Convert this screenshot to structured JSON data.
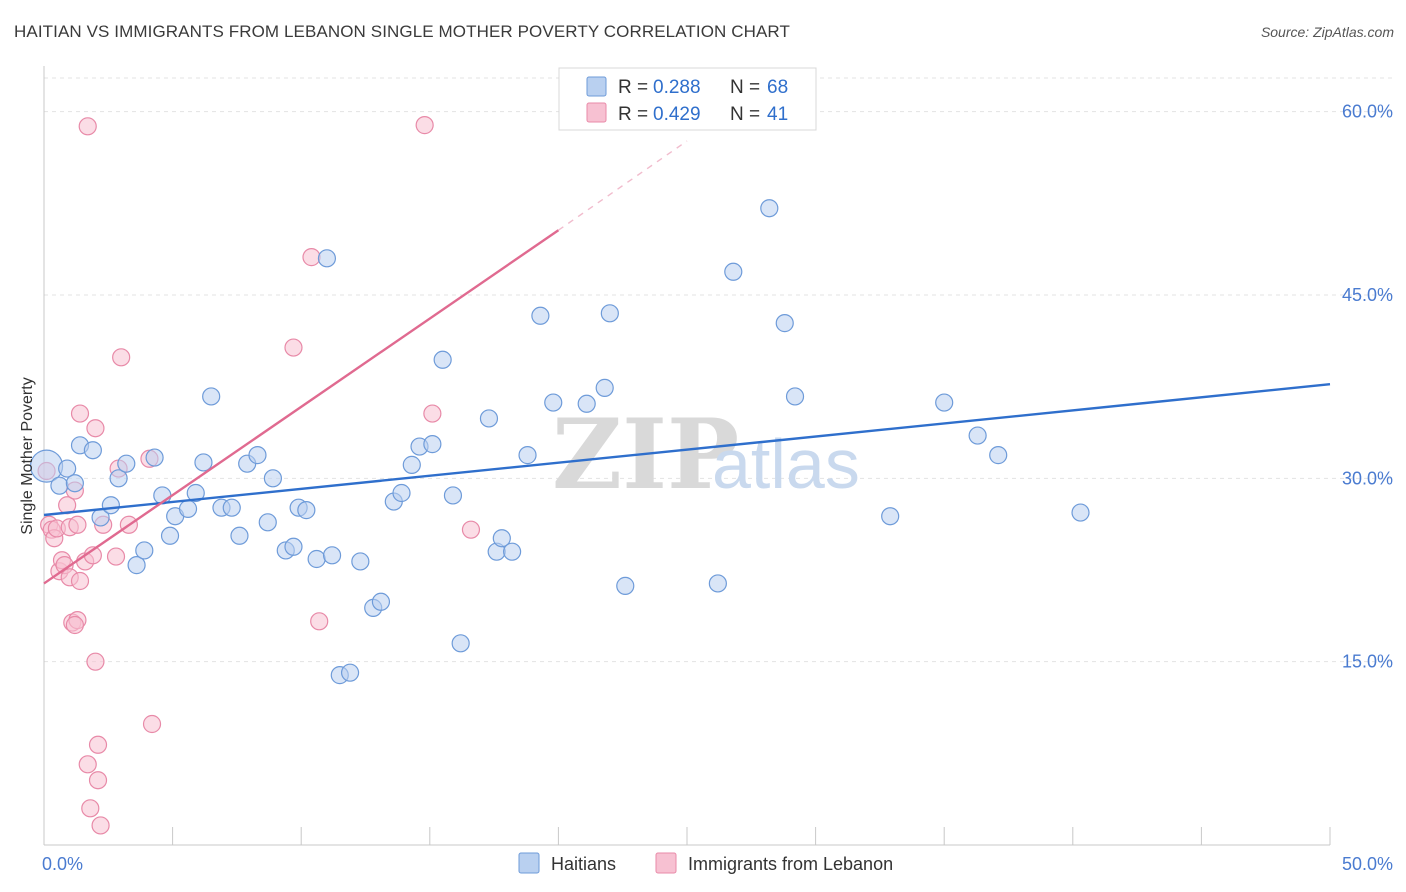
{
  "title": "HAITIAN VS IMMIGRANTS FROM LEBANON SINGLE MOTHER POVERTY CORRELATION CHART",
  "source": "Source: ZipAtlas.com",
  "watermark": {
    "zip": "ZIP",
    "atlas": "atlas"
  },
  "colors": {
    "haitians_fill": "#b9d0f0",
    "haitians_stroke": "#6e9bd9",
    "haitians_line": "#2f6fcc",
    "lebanon_fill": "#f7c1d2",
    "lebanon_stroke": "#e88aa8",
    "lebanon_line": "#e06a90",
    "tick_text": "#4a7bd0",
    "grid": "#e3e3e3"
  },
  "stats_box": {
    "rows": [
      {
        "r_label": "R =",
        "r_value": "0.288",
        "n_label": "N =",
        "n_value": "68"
      },
      {
        "r_label": "R =",
        "r_value": "0.429",
        "n_label": "N =",
        "n_value": "41"
      }
    ]
  },
  "chart_data": {
    "type": "scatter",
    "title": "HAITIAN VS IMMIGRANTS FROM LEBANON SINGLE MOTHER POVERTY CORRELATION CHART",
    "xlabel": "",
    "ylabel": "Single Mother Poverty",
    "xlim": [
      0,
      50
    ],
    "ylim": [
      0,
      63
    ],
    "x_ticks": [
      {
        "value": 0,
        "label": "0.0%"
      },
      {
        "value": 50,
        "label": "50.0%"
      }
    ],
    "y_ticks": [
      {
        "value": 15,
        "label": "15.0%"
      },
      {
        "value": 30,
        "label": "30.0%"
      },
      {
        "value": 45,
        "label": "45.0%"
      },
      {
        "value": 60,
        "label": "60.0%"
      }
    ],
    "grid": true,
    "legend_position": "bottom-center",
    "series": [
      {
        "name": "Haitians",
        "trendline": {
          "x": [
            0,
            50
          ],
          "y": [
            27.0,
            37.7
          ],
          "dashed_to": null
        },
        "points": [
          [
            0.1,
            31.0
          ],
          [
            0.6,
            29.4
          ],
          [
            0.9,
            30.8
          ],
          [
            1.2,
            29.6
          ],
          [
            1.4,
            32.7
          ],
          [
            1.9,
            32.3
          ],
          [
            2.2,
            26.8
          ],
          [
            2.6,
            27.8
          ],
          [
            2.9,
            30.0
          ],
          [
            3.2,
            31.2
          ],
          [
            3.6,
            22.9
          ],
          [
            3.9,
            24.1
          ],
          [
            4.3,
            31.7
          ],
          [
            4.6,
            28.6
          ],
          [
            4.9,
            25.3
          ],
          [
            5.1,
            26.9
          ],
          [
            5.6,
            27.5
          ],
          [
            5.9,
            28.8
          ],
          [
            6.2,
            31.3
          ],
          [
            6.5,
            36.7
          ],
          [
            6.9,
            27.6
          ],
          [
            7.3,
            27.6
          ],
          [
            7.6,
            25.3
          ],
          [
            7.9,
            31.2
          ],
          [
            8.3,
            31.9
          ],
          [
            8.7,
            26.4
          ],
          [
            8.9,
            30.0
          ],
          [
            9.4,
            24.1
          ],
          [
            9.7,
            24.4
          ],
          [
            9.9,
            27.6
          ],
          [
            10.2,
            27.4
          ],
          [
            10.6,
            23.4
          ],
          [
            11.0,
            48.0
          ],
          [
            11.2,
            23.7
          ],
          [
            11.5,
            13.9
          ],
          [
            11.9,
            14.1
          ],
          [
            12.3,
            23.2
          ],
          [
            12.8,
            19.4
          ],
          [
            13.1,
            19.9
          ],
          [
            13.6,
            28.1
          ],
          [
            13.9,
            28.8
          ],
          [
            14.3,
            31.1
          ],
          [
            14.6,
            32.6
          ],
          [
            15.1,
            32.8
          ],
          [
            15.5,
            39.7
          ],
          [
            15.9,
            28.6
          ],
          [
            16.2,
            16.5
          ],
          [
            17.3,
            34.9
          ],
          [
            17.6,
            24.0
          ],
          [
            17.8,
            25.1
          ],
          [
            18.2,
            24.0
          ],
          [
            18.8,
            31.9
          ],
          [
            19.3,
            43.3
          ],
          [
            19.8,
            36.2
          ],
          [
            21.1,
            36.1
          ],
          [
            21.8,
            37.4
          ],
          [
            22.0,
            43.5
          ],
          [
            22.6,
            21.2
          ],
          [
            26.2,
            21.4
          ],
          [
            26.8,
            46.9
          ],
          [
            28.2,
            52.1
          ],
          [
            28.8,
            42.7
          ],
          [
            29.2,
            36.7
          ],
          [
            32.9,
            26.9
          ],
          [
            35.0,
            36.2
          ],
          [
            36.3,
            33.5
          ],
          [
            37.1,
            31.9
          ],
          [
            40.3,
            27.2
          ]
        ]
      },
      {
        "name": "Immigrants from Lebanon",
        "trendline": {
          "x": [
            0,
            20
          ],
          "y": [
            21.4,
            50.3
          ],
          "dashed_to": [
            25,
            57.6
          ]
        },
        "points": [
          [
            0.1,
            30.6
          ],
          [
            0.2,
            26.2
          ],
          [
            0.3,
            25.8
          ],
          [
            0.4,
            25.1
          ],
          [
            0.5,
            25.9
          ],
          [
            0.6,
            22.4
          ],
          [
            0.7,
            23.3
          ],
          [
            0.8,
            22.9
          ],
          [
            0.9,
            27.8
          ],
          [
            1.0,
            21.9
          ],
          [
            1.0,
            26.0
          ],
          [
            1.1,
            18.2
          ],
          [
            1.2,
            29.0
          ],
          [
            1.3,
            26.2
          ],
          [
            1.3,
            18.4
          ],
          [
            1.4,
            21.6
          ],
          [
            1.4,
            35.3
          ],
          [
            1.6,
            23.2
          ],
          [
            1.7,
            6.6
          ],
          [
            1.7,
            58.8
          ],
          [
            1.8,
            3.0
          ],
          [
            1.9,
            23.7
          ],
          [
            2.0,
            34.1
          ],
          [
            2.0,
            15.0
          ],
          [
            2.1,
            8.2
          ],
          [
            2.1,
            5.3
          ],
          [
            2.2,
            1.6
          ],
          [
            2.3,
            26.2
          ],
          [
            2.8,
            23.6
          ],
          [
            2.9,
            30.8
          ],
          [
            3.0,
            39.9
          ],
          [
            4.1,
            31.6
          ],
          [
            4.2,
            9.9
          ],
          [
            9.7,
            40.7
          ],
          [
            10.4,
            48.1
          ],
          [
            10.7,
            18.3
          ],
          [
            14.8,
            58.9
          ],
          [
            15.1,
            35.3
          ],
          [
            16.6,
            25.8
          ],
          [
            1.2,
            18.0
          ],
          [
            3.3,
            26.2
          ]
        ]
      }
    ]
  },
  "legend": {
    "items": [
      {
        "label": "Haitians"
      },
      {
        "label": "Immigrants from Lebanon"
      }
    ]
  }
}
